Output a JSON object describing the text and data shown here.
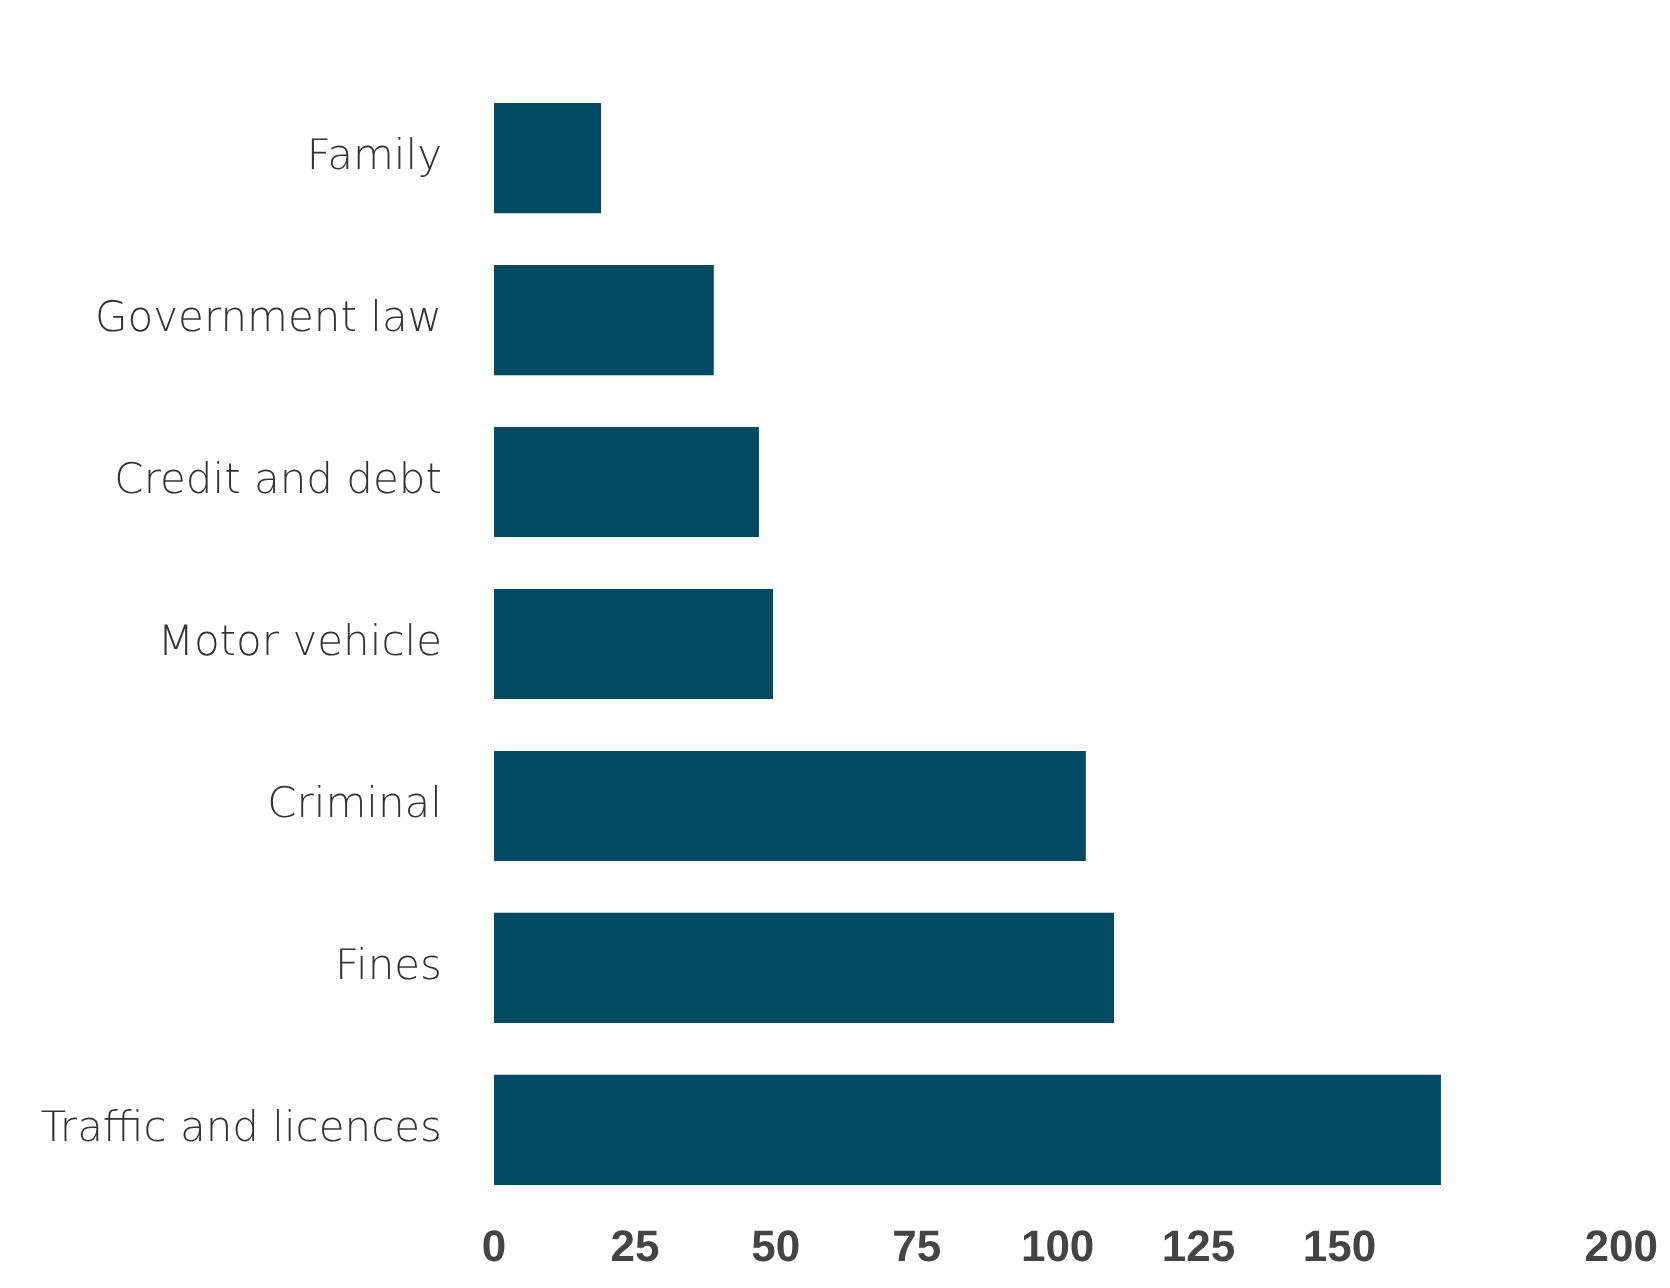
{
  "chart_data": {
    "type": "bar",
    "orientation": "horizontal",
    "categories": [
      "Family",
      "Government law",
      "Credit and debt",
      "Motor vehicle",
      "Criminal",
      "Fines",
      "Traffic and licences"
    ],
    "values": [
      19,
      39,
      47,
      49.5,
      105,
      110,
      168
    ],
    "color": "#014a63",
    "xlim": [
      0,
      200
    ],
    "xticks": [
      0,
      25,
      50,
      75,
      100,
      125,
      150,
      200
    ],
    "grid": false,
    "legend": false
  }
}
